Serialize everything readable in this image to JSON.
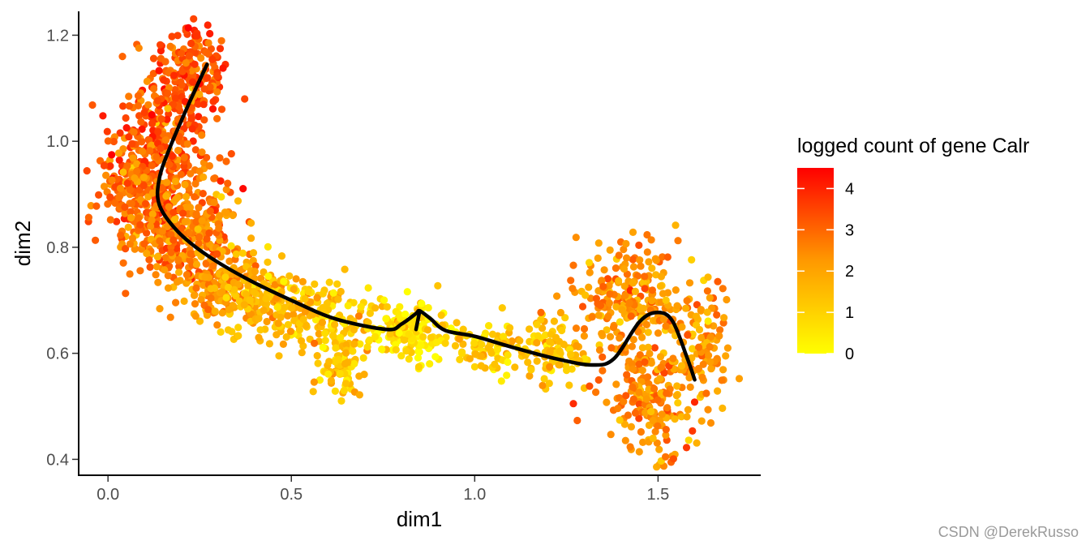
{
  "chart_data": {
    "type": "scatter",
    "xlabel": "dim1",
    "ylabel": "dim2",
    "xlim": [
      -0.08,
      1.78
    ],
    "ylim": [
      0.37,
      1.245
    ],
    "x_ticks": [
      0.0,
      0.5,
      1.0,
      1.5
    ],
    "x_tick_labels": [
      "0.0",
      "0.5",
      "1.0",
      "1.5"
    ],
    "y_ticks": [
      0.4,
      0.6,
      0.8,
      1.0,
      1.2
    ],
    "y_tick_labels": [
      "0.4",
      "0.6",
      "0.8",
      "1.0",
      "1.2"
    ],
    "grid": false,
    "legend": {
      "title": "logged count of gene Calr",
      "placement": "right",
      "range": [
        0,
        4.5
      ],
      "ticks": [
        0,
        1,
        2,
        3,
        4
      ],
      "tick_labels": [
        "0",
        "1",
        "2",
        "3",
        "4"
      ],
      "color_low": "#ffff00",
      "color_mid": "#ff9900",
      "color_high": "#ff0000"
    },
    "cell_clusters": [
      {
        "cx": 0.22,
        "cy": 1.12,
        "sx": 0.055,
        "sy": 0.055,
        "n": 220,
        "expr": 3.3
      },
      {
        "cx": 0.13,
        "cy": 0.98,
        "sx": 0.06,
        "sy": 0.06,
        "n": 260,
        "expr": 3.1
      },
      {
        "cx": 0.07,
        "cy": 0.9,
        "sx": 0.05,
        "sy": 0.045,
        "n": 140,
        "expr": 2.9
      },
      {
        "cx": 0.17,
        "cy": 0.82,
        "sx": 0.06,
        "sy": 0.045,
        "n": 200,
        "expr": 2.8
      },
      {
        "cx": 0.27,
        "cy": 0.86,
        "sx": 0.05,
        "sy": 0.06,
        "n": 120,
        "expr": 2.6
      },
      {
        "cx": 0.3,
        "cy": 0.73,
        "sx": 0.06,
        "sy": 0.035,
        "n": 150,
        "expr": 2.3
      },
      {
        "cx": 0.43,
        "cy": 0.7,
        "sx": 0.07,
        "sy": 0.035,
        "n": 170,
        "expr": 1.6
      },
      {
        "cx": 0.6,
        "cy": 0.68,
        "sx": 0.06,
        "sy": 0.03,
        "n": 110,
        "expr": 1.3
      },
      {
        "cx": 0.64,
        "cy": 0.58,
        "sx": 0.03,
        "sy": 0.03,
        "n": 90,
        "expr": 1.2
      },
      {
        "cx": 0.82,
        "cy": 0.64,
        "sx": 0.06,
        "sy": 0.03,
        "n": 170,
        "expr": 0.6
      },
      {
        "cx": 1.05,
        "cy": 0.61,
        "sx": 0.06,
        "sy": 0.025,
        "n": 90,
        "expr": 1.1
      },
      {
        "cx": 1.22,
        "cy": 0.6,
        "sx": 0.05,
        "sy": 0.03,
        "n": 90,
        "expr": 1.4
      },
      {
        "cx": 1.42,
        "cy": 0.7,
        "sx": 0.07,
        "sy": 0.05,
        "n": 220,
        "expr": 2.3
      },
      {
        "cx": 1.48,
        "cy": 0.52,
        "sx": 0.06,
        "sy": 0.05,
        "n": 190,
        "expr": 2.4
      },
      {
        "cx": 1.62,
        "cy": 0.62,
        "sx": 0.04,
        "sy": 0.06,
        "n": 110,
        "expr": 2.2
      }
    ],
    "trajectory": [
      [
        0.27,
        1.145
      ],
      [
        0.22,
        1.07
      ],
      [
        0.17,
        0.99
      ],
      [
        0.14,
        0.93
      ],
      [
        0.14,
        0.88
      ],
      [
        0.19,
        0.83
      ],
      [
        0.27,
        0.785
      ],
      [
        0.38,
        0.74
      ],
      [
        0.5,
        0.7
      ],
      [
        0.62,
        0.665
      ],
      [
        0.76,
        0.645
      ],
      [
        0.8,
        0.655
      ],
      [
        0.84,
        0.675
      ],
      [
        0.85,
        0.68
      ],
      [
        0.88,
        0.665
      ],
      [
        0.92,
        0.643
      ],
      [
        1.0,
        0.632
      ],
      [
        1.1,
        0.612
      ],
      [
        1.22,
        0.59
      ],
      [
        1.32,
        0.578
      ],
      [
        1.38,
        0.59
      ],
      [
        1.45,
        0.66
      ],
      [
        1.5,
        0.677
      ],
      [
        1.54,
        0.66
      ],
      [
        1.58,
        0.59
      ],
      [
        1.6,
        0.55
      ]
    ],
    "trajectory_branch": [
      [
        0.85,
        0.68
      ],
      [
        0.84,
        0.645
      ]
    ]
  },
  "watermark": "CSDN @DerekRusso"
}
